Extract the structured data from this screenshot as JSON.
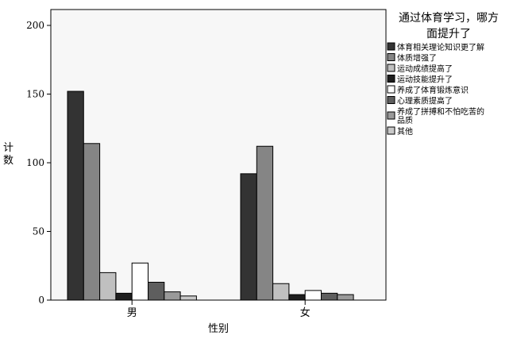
{
  "chart_data": {
    "type": "bar",
    "title": "",
    "xlabel": "性别",
    "ylabel": "计数",
    "ylim": [
      0,
      200
    ],
    "yticks": [
      0,
      50,
      100,
      150,
      200
    ],
    "categories": [
      "男",
      "女"
    ],
    "grid": false,
    "legend_title": "通过体育学习，哪方面提升了",
    "legend_placement": "right",
    "series": [
      {
        "name": "体育相关理论知识更了解",
        "values": [
          152,
          92
        ],
        "color": "#333333"
      },
      {
        "name": "体质增强了",
        "values": [
          114,
          112
        ],
        "color": "#858585"
      },
      {
        "name": "运动成绩提高了",
        "values": [
          20,
          12
        ],
        "color": "#c0c0c0"
      },
      {
        "name": "运动技能提升了",
        "values": [
          5,
          4
        ],
        "color": "#1e1e1e"
      },
      {
        "name": "养成了体育锻炼意识",
        "values": [
          27,
          7
        ],
        "color": "#ffffff"
      },
      {
        "name": "心理素质提高了",
        "values": [
          13,
          5
        ],
        "color": "#5e5e5e"
      },
      {
        "name": "养成了拼搏和不怕吃苦的品质",
        "values": [
          6,
          4
        ],
        "color": "#9a9a9a"
      },
      {
        "name": "其他",
        "values": [
          3,
          0
        ],
        "color": "#c8c8c8"
      }
    ]
  }
}
